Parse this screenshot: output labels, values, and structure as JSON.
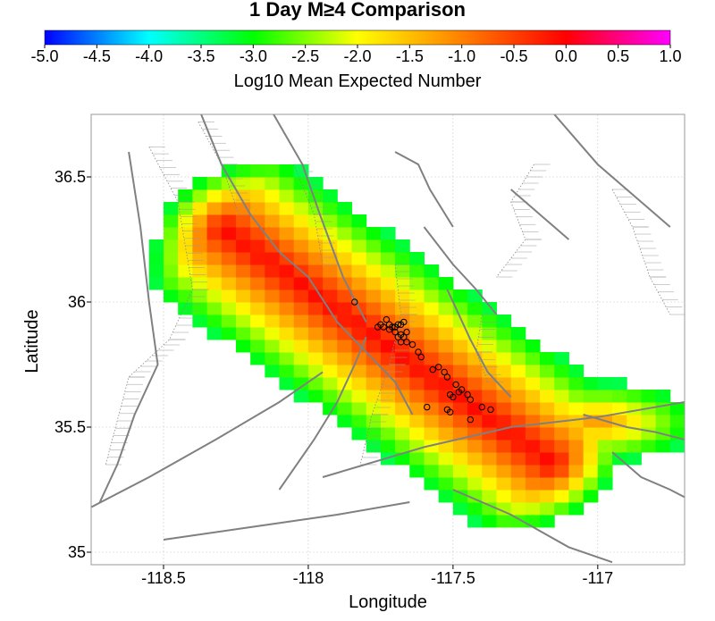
{
  "chart_data": {
    "type": "heatmap",
    "title": "1 Day M≥4 Comparison",
    "colorbar": {
      "label": "Log10 Mean Expected Number",
      "range": [
        -5.0,
        1.0
      ],
      "ticks": [
        "-5.0",
        "-4.5",
        "-4.0",
        "-3.5",
        "-3.0",
        "-2.5",
        "-2.0",
        "-1.5",
        "-1.0",
        "-0.5",
        "0.0",
        "0.5",
        "1.0"
      ],
      "colors": [
        "#0000ff",
        "#00ffff",
        "#00ff00",
        "#ffff00",
        "#ff8000",
        "#ff0000",
        "#ff00ff"
      ]
    },
    "xlabel": "Longitude",
    "ylabel": "Latitude",
    "xlim": [
      -118.75,
      -116.7
    ],
    "ylim": [
      34.95,
      36.75
    ],
    "x_ticks": [
      "-118.5",
      "-118",
      "-117.5",
      "-117"
    ],
    "y_ticks": [
      "35",
      "35.5",
      "36",
      "36.5"
    ],
    "grid": true,
    "grid_step": 0.05,
    "field_model": {
      "fault_start": [
        -118.3,
        36.3
      ],
      "fault_end": [
        -117.15,
        35.35
      ],
      "peak_log10": -0.05,
      "along_edge_falloff": 2.2,
      "across_halfwidth_deg": 0.28,
      "cutoff_log10": -3.3
    },
    "earthquakes": [
      [
        -117.84,
        36.0
      ],
      [
        -117.73,
        35.93
      ],
      [
        -117.75,
        35.91
      ],
      [
        -117.76,
        35.9
      ],
      [
        -117.74,
        35.9
      ],
      [
        -117.72,
        35.91
      ],
      [
        -117.71,
        35.9
      ],
      [
        -117.7,
        35.9
      ],
      [
        -117.69,
        35.91
      ],
      [
        -117.68,
        35.91
      ],
      [
        -117.67,
        35.92
      ],
      [
        -117.72,
        35.89
      ],
      [
        -117.7,
        35.88
      ],
      [
        -117.68,
        35.87
      ],
      [
        -117.67,
        35.86
      ],
      [
        -117.66,
        35.88
      ],
      [
        -117.69,
        35.86
      ],
      [
        -117.68,
        35.84
      ],
      [
        -117.66,
        35.84
      ],
      [
        -117.64,
        35.83
      ],
      [
        -117.62,
        35.8
      ],
      [
        -117.61,
        35.78
      ],
      [
        -117.57,
        35.73
      ],
      [
        -117.55,
        35.74
      ],
      [
        -117.53,
        35.72
      ],
      [
        -117.52,
        35.7
      ],
      [
        -117.49,
        35.67
      ],
      [
        -117.47,
        35.65
      ],
      [
        -117.48,
        35.64
      ],
      [
        -117.45,
        35.63
      ],
      [
        -117.44,
        35.61
      ],
      [
        -117.51,
        35.63
      ],
      [
        -117.5,
        35.62
      ],
      [
        -117.4,
        35.58
      ],
      [
        -117.37,
        35.57
      ],
      [
        -117.59,
        35.58
      ],
      [
        -117.52,
        35.57
      ],
      [
        -117.51,
        35.56
      ],
      [
        -117.44,
        35.53
      ]
    ],
    "fault_lines": [
      [
        [
          -118.62,
          36.6
        ],
        [
          -118.58,
          36.3
        ],
        [
          -118.55,
          36.0
        ],
        [
          -118.52,
          35.75
        ],
        [
          -118.6,
          35.55
        ],
        [
          -118.66,
          35.35
        ],
        [
          -118.72,
          35.2
        ]
      ],
      [
        [
          -118.37,
          36.75
        ],
        [
          -118.3,
          36.55
        ],
        [
          -118.2,
          36.35
        ],
        [
          -118.1,
          36.2
        ],
        [
          -118.0,
          36.1
        ],
        [
          -117.9,
          35.92
        ],
        [
          -117.8,
          35.8
        ],
        [
          -117.7,
          35.68
        ],
        [
          -117.64,
          35.55
        ]
      ],
      [
        [
          -118.12,
          36.75
        ],
        [
          -118.02,
          36.55
        ],
        [
          -117.96,
          36.35
        ],
        [
          -117.88,
          36.1
        ],
        [
          -117.8,
          35.92
        ]
      ],
      [
        [
          -118.75,
          35.18
        ],
        [
          -118.55,
          35.3
        ],
        [
          -118.32,
          35.45
        ],
        [
          -118.1,
          35.6
        ],
        [
          -117.95,
          35.72
        ]
      ],
      [
        [
          -118.1,
          35.25
        ],
        [
          -117.98,
          35.45
        ],
        [
          -117.9,
          35.6
        ],
        [
          -117.84,
          35.75
        ],
        [
          -117.8,
          35.86
        ]
      ],
      [
        [
          -117.95,
          35.3
        ],
        [
          -117.6,
          35.42
        ],
        [
          -117.3,
          35.5
        ],
        [
          -117.0,
          35.54
        ],
        [
          -116.7,
          35.6
        ]
      ],
      [
        [
          -117.15,
          36.75
        ],
        [
          -117.0,
          36.55
        ],
        [
          -116.85,
          36.4
        ],
        [
          -116.75,
          36.3
        ]
      ],
      [
        [
          -117.52,
          36.05
        ],
        [
          -117.48,
          35.95
        ],
        [
          -117.44,
          35.85
        ],
        [
          -117.38,
          35.72
        ],
        [
          -117.3,
          35.62
        ]
      ],
      [
        [
          -117.6,
          36.3
        ],
        [
          -117.5,
          36.15
        ],
        [
          -117.42,
          36.05
        ],
        [
          -117.35,
          35.95
        ]
      ],
      [
        [
          -118.5,
          35.05
        ],
        [
          -118.2,
          35.1
        ],
        [
          -117.9,
          35.15
        ],
        [
          -117.65,
          35.2
        ]
      ],
      [
        [
          -117.5,
          35.25
        ],
        [
          -117.3,
          35.15
        ],
        [
          -117.1,
          35.02
        ],
        [
          -116.95,
          34.96
        ]
      ],
      [
        [
          -116.95,
          35.4
        ],
        [
          -116.85,
          35.3
        ],
        [
          -116.75,
          35.25
        ],
        [
          -116.7,
          35.22
        ]
      ],
      [
        [
          -117.05,
          35.55
        ],
        [
          -116.9,
          35.5
        ],
        [
          -116.8,
          35.48
        ],
        [
          -116.7,
          35.45
        ]
      ],
      [
        [
          -117.7,
          36.6
        ],
        [
          -117.62,
          36.55
        ],
        [
          -117.58,
          36.45
        ],
        [
          -117.5,
          36.3
        ]
      ],
      [
        [
          -117.3,
          36.45
        ],
        [
          -117.2,
          36.35
        ],
        [
          -117.1,
          36.25
        ]
      ]
    ],
    "hachured_zones": [
      [
        [
          -118.55,
          36.62
        ],
        [
          -118.45,
          36.4
        ],
        [
          -118.4,
          36.05
        ],
        [
          -118.48,
          35.85
        ],
        [
          -118.62,
          35.7
        ],
        [
          -118.7,
          35.35
        ]
      ],
      [
        [
          -118.38,
          36.72
        ],
        [
          -118.3,
          36.55
        ],
        [
          -118.24,
          36.35
        ]
      ],
      [
        [
          -118.05,
          36.55
        ],
        [
          -117.98,
          36.35
        ],
        [
          -117.95,
          36.15
        ]
      ],
      [
        [
          -117.7,
          36.15
        ],
        [
          -117.68,
          35.95
        ],
        [
          -117.72,
          35.75
        ],
        [
          -117.78,
          35.55
        ],
        [
          -117.82,
          35.35
        ]
      ],
      [
        [
          -117.22,
          36.55
        ],
        [
          -117.3,
          36.4
        ],
        [
          -117.25,
          36.25
        ],
        [
          -117.35,
          36.1
        ]
      ],
      [
        [
          -116.95,
          36.45
        ],
        [
          -116.88,
          36.3
        ],
        [
          -116.82,
          36.1
        ],
        [
          -116.75,
          35.95
        ]
      ],
      [
        [
          -117.4,
          35.95
        ],
        [
          -117.42,
          35.8
        ],
        [
          -117.38,
          35.68
        ]
      ]
    ]
  }
}
